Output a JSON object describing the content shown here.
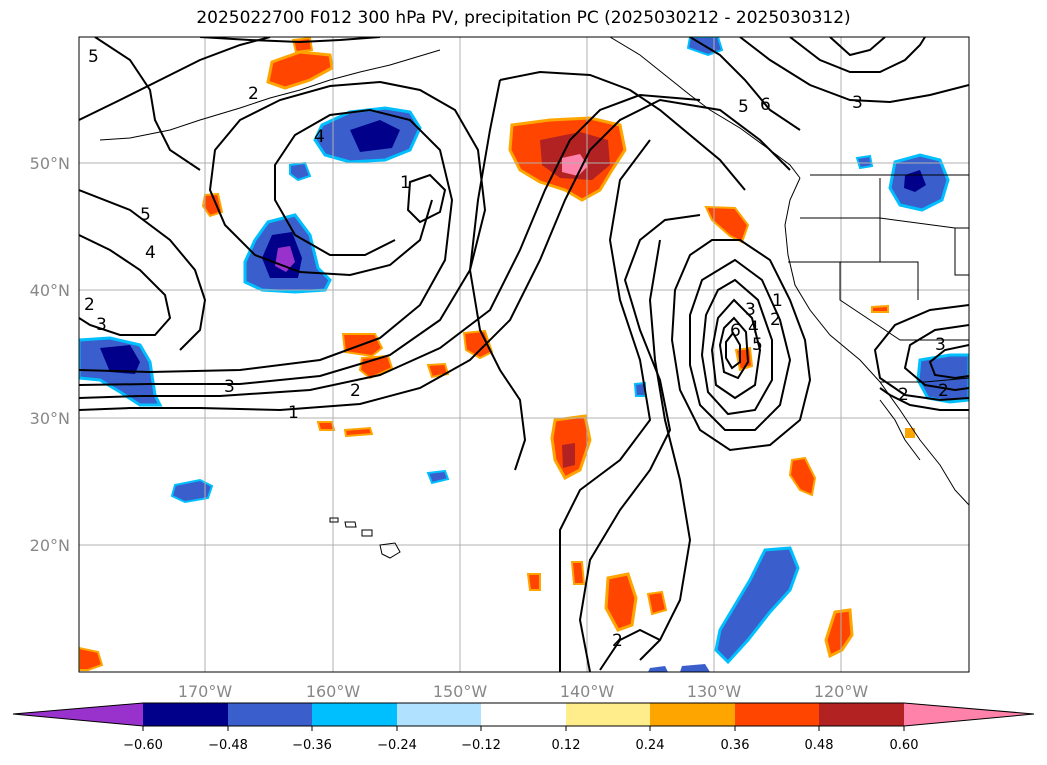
{
  "title": "2025022700 F012 300 hPa PV, precipitation PC (2025030212 - 2025030312)",
  "lat_labels": [
    "50°N",
    "40°N",
    "30°N",
    "20°N"
  ],
  "lon_labels": [
    "170°W",
    "160°W",
    "150°W",
    "140°W",
    "130°W",
    "120°W"
  ],
  "colorbar": {
    "tick_labels": [
      "−0.60",
      "−0.48",
      "−0.36",
      "−0.24",
      "−0.12",
      "0.12",
      "0.24",
      "0.36",
      "0.48",
      "0.60"
    ],
    "colors": [
      "#9932cc",
      "#00008b",
      "#3a5fcd",
      "#00bfff",
      "#b0e2ff",
      "#ffffff",
      "#ffec8b",
      "#ffa500",
      "#ff4500",
      "#b22222",
      "#ff82ab"
    ]
  },
  "contour_labels": [
    "5",
    "2",
    "4",
    "5",
    "4",
    "2",
    "3",
    "3",
    "2",
    "1",
    "5",
    "6",
    "3",
    "2",
    "3",
    "4",
    "5",
    "6",
    "1",
    "2",
    "3",
    "2",
    "1",
    "2"
  ]
}
